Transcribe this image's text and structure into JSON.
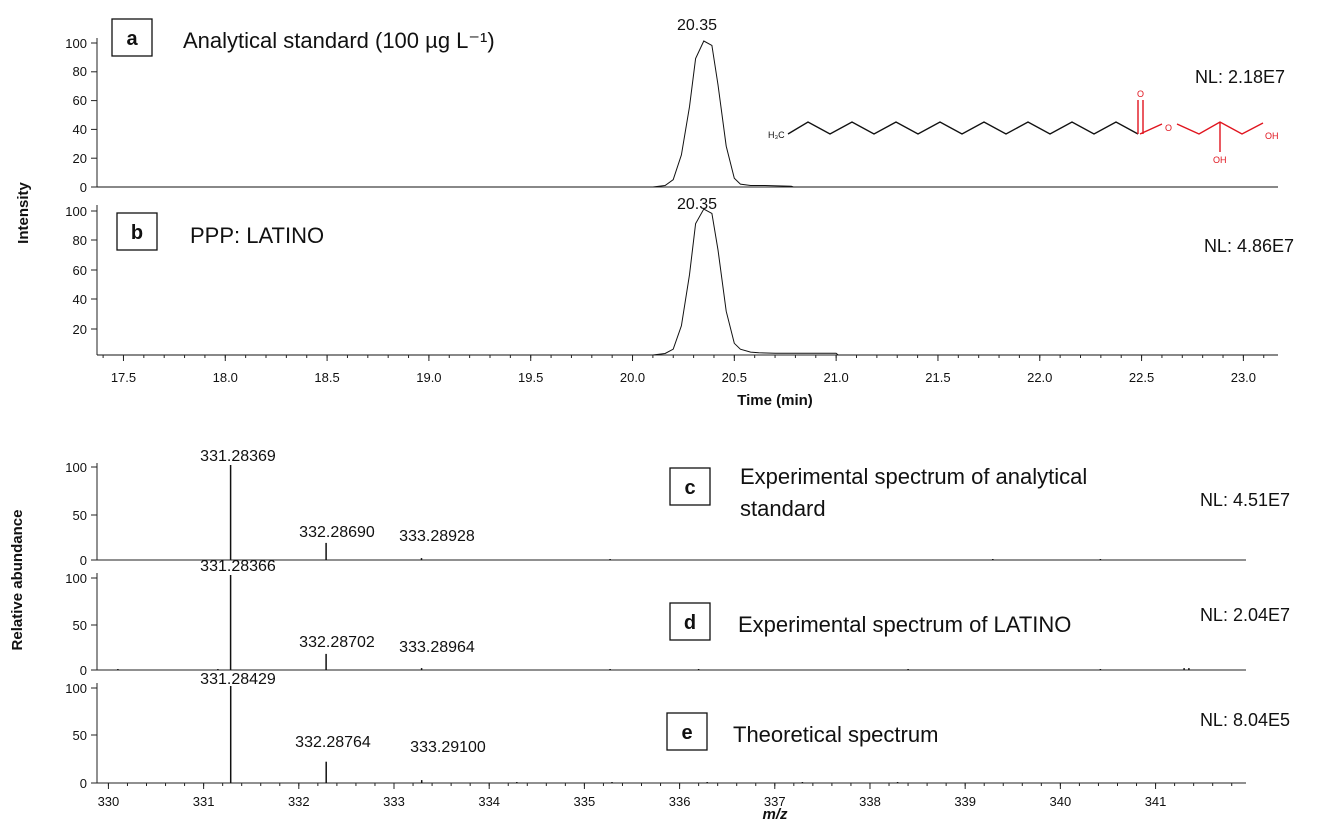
{
  "chromatogram": {
    "y_axis_label": "Intensity",
    "x_axis_label": "Time (min)",
    "x_range": [
      17.37,
      23.17
    ],
    "x_ticks": [
      "17.5",
      "18.0",
      "18.5",
      "19.0",
      "19.5",
      "20.0",
      "20.5",
      "21.0",
      "21.5",
      "22.0",
      "22.5",
      "23.0"
    ],
    "y_ticks_a": [
      "0",
      "20",
      "40",
      "60",
      "80",
      "100"
    ],
    "y_ticks_b": [
      "20",
      "40",
      "60",
      "80",
      "100"
    ],
    "panel_a": {
      "letter": "a",
      "title": "Analytical standard (100 µg L⁻¹)",
      "peak_label": "20.35",
      "nl": "NL: 2.18E7",
      "structure": {
        "ch3": "H₃C",
        "o_carbonyl": "O",
        "o_ester": "O",
        "oh1": "OH",
        "oh2": "OH"
      }
    },
    "panel_b": {
      "letter": "b",
      "title": "PPP: LATINO",
      "peak_label": "20.35",
      "nl": "NL: 4.86E7"
    }
  },
  "spectra": {
    "y_axis_label": "Relative abundance",
    "x_axis_label": "m/z",
    "x_range": [
      329.88,
      341.95
    ],
    "x_ticks": [
      "330",
      "331",
      "332",
      "333",
      "334",
      "335",
      "336",
      "337",
      "338",
      "339",
      "340",
      "341"
    ],
    "y_ticks": [
      "0",
      "50",
      "100"
    ],
    "panel_c": {
      "letter": "c",
      "title_line1": "Experimental spectrum of analytical",
      "title_line2": "standard",
      "nl": "NL: 4.51E7",
      "peak_labels": [
        "331.28369",
        "332.28690",
        "333.28928"
      ]
    },
    "panel_d": {
      "letter": "d",
      "title": "Experimental spectrum of LATINO",
      "nl": "NL: 2.04E7",
      "peak_labels": [
        "331.28366",
        "332.28702",
        "333.28964"
      ]
    },
    "panel_e": {
      "letter": "e",
      "title": "Theoretical spectrum",
      "nl": "NL: 8.04E5",
      "peak_labels": [
        "331.28429",
        "332.28764",
        "333.29100"
      ]
    }
  },
  "chart_data": [
    {
      "type": "line",
      "panel": "a",
      "title": "Analytical standard (100 µg L⁻¹)",
      "xlabel": "Time (min)",
      "ylabel": "Intensity",
      "ylim": [
        0,
        100
      ],
      "xlim": [
        17.37,
        23.17
      ],
      "annotations": [
        "20.35",
        "NL: 2.18E7"
      ],
      "x": [
        17.37,
        20.1,
        20.16,
        20.2,
        20.24,
        20.28,
        20.31,
        20.35,
        20.39,
        20.42,
        20.46,
        20.5,
        20.53,
        20.58,
        20.65,
        20.78,
        20.79,
        23.17
      ],
      "y": [
        0,
        0,
        1,
        5,
        22,
        55,
        88,
        100,
        97,
        70,
        28,
        6,
        2,
        1,
        1,
        0.5,
        0,
        0
      ]
    },
    {
      "type": "line",
      "panel": "b",
      "title": "PPP: LATINO",
      "xlabel": "Time (min)",
      "ylabel": "Intensity",
      "ylim": [
        0,
        100
      ],
      "xlim": [
        17.37,
        23.17
      ],
      "annotations": [
        "20.35",
        "NL: 4.86E7"
      ],
      "x": [
        17.37,
        20.1,
        20.16,
        20.2,
        20.24,
        20.28,
        20.31,
        20.35,
        20.39,
        20.42,
        20.46,
        20.5,
        20.53,
        20.58,
        20.62,
        20.7,
        21.0,
        21.01,
        23.17
      ],
      "y": [
        0,
        0,
        1,
        4,
        20,
        55,
        90,
        100,
        97,
        72,
        30,
        8,
        4,
        2,
        1.5,
        1.2,
        1.2,
        0,
        0
      ]
    },
    {
      "type": "bar",
      "panel": "c",
      "title": "Experimental spectrum of analytical standard",
      "xlabel": "m/z",
      "ylabel": "Relative abundance",
      "ylim": [
        0,
        100
      ],
      "xlim": [
        329.88,
        341.95
      ],
      "annotations": [
        "331.28369",
        "332.28690",
        "333.28928",
        "NL: 4.51E7"
      ],
      "x": [
        331.28369,
        332.2869,
        333.28928,
        335.27,
        339.29,
        340.42
      ],
      "y": [
        100,
        18,
        2,
        1,
        1,
        1
      ]
    },
    {
      "type": "bar",
      "panel": "d",
      "title": "Experimental spectrum of LATINO",
      "xlabel": "m/z",
      "ylabel": "Relative abundance",
      "ylim": [
        0,
        100
      ],
      "xlim": [
        329.88,
        341.95
      ],
      "annotations": [
        "331.28366",
        "332.28702",
        "333.28964",
        "NL: 2.04E7"
      ],
      "x": [
        330.1,
        331.15,
        331.28366,
        332.28702,
        333.28964,
        335.27,
        336.2,
        338.4,
        340.42,
        341.3,
        341.35
      ],
      "y": [
        1,
        1,
        100,
        17,
        2,
        1,
        1,
        1,
        1,
        2,
        2
      ]
    },
    {
      "type": "bar",
      "panel": "e",
      "title": "Theoretical spectrum",
      "xlabel": "m/z",
      "ylabel": "Relative abundance",
      "ylim": [
        0,
        100
      ],
      "xlim": [
        329.88,
        341.95
      ],
      "annotations": [
        "331.28429",
        "332.28764",
        "333.29100",
        "NL: 8.04E5"
      ],
      "x": [
        331.28429,
        332.28764,
        333.291,
        334.29,
        335.29,
        336.29,
        337.29,
        338.29
      ],
      "y": [
        100,
        22,
        3,
        1,
        1,
        1,
        1,
        1
      ]
    }
  ]
}
